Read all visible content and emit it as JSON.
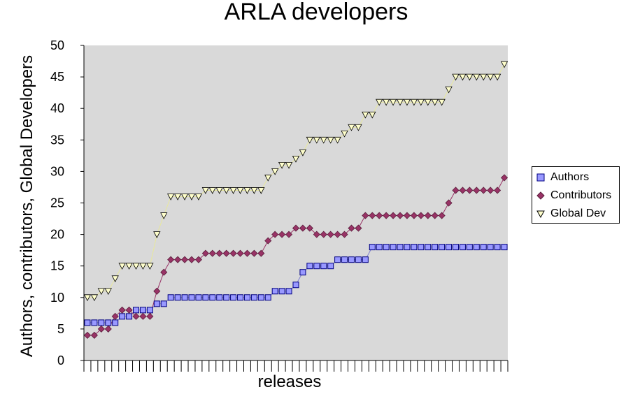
{
  "chart_data": {
    "type": "line",
    "title": "ARLA developers",
    "xlabel": "releases",
    "ylabel": "Authors, contributors, Global Developers",
    "ylim": [
      0,
      50
    ],
    "ytick_values": [
      0,
      5,
      10,
      15,
      20,
      25,
      30,
      35,
      40,
      45,
      50
    ],
    "ytick_labels": [
      "0",
      "5",
      "10",
      "15",
      "20",
      "25",
      "30",
      "35",
      "40",
      "45",
      "50"
    ],
    "release_count": 61,
    "series": [
      {
        "name": "Authors",
        "marker": "square",
        "fill": "#9999ff",
        "stroke": "#000080",
        "values": [
          6,
          6,
          6,
          6,
          6,
          7,
          7,
          8,
          8,
          8,
          9,
          9,
          10,
          10,
          10,
          10,
          10,
          10,
          10,
          10,
          10,
          10,
          10,
          10,
          10,
          10,
          10,
          11,
          11,
          11,
          12,
          14,
          15,
          15,
          15,
          15,
          16,
          16,
          16,
          16,
          16,
          18,
          18,
          18,
          18,
          18,
          18,
          18,
          18,
          18,
          18,
          18,
          18,
          18,
          18,
          18,
          18,
          18,
          18,
          18,
          18
        ]
      },
      {
        "name": "Contributors",
        "marker": "diamond",
        "fill": "#993366",
        "stroke": "#5a1e3c",
        "values": [
          4,
          4,
          5,
          5,
          7,
          8,
          8,
          7,
          7,
          7,
          11,
          14,
          16,
          16,
          16,
          16,
          16,
          17,
          17,
          17,
          17,
          17,
          17,
          17,
          17,
          17,
          19,
          20,
          20,
          20,
          21,
          21,
          21,
          20,
          20,
          20,
          20,
          20,
          21,
          21,
          23,
          23,
          23,
          23,
          23,
          23,
          23,
          23,
          23,
          23,
          23,
          23,
          25,
          27,
          27,
          27,
          27,
          27,
          27,
          27,
          29
        ]
      },
      {
        "name": "Global Dev",
        "marker": "triangle-down",
        "fill": "#ffffcc",
        "stroke": "#000000",
        "values": [
          10,
          10,
          11,
          11,
          13,
          15,
          15,
          15,
          15,
          15,
          20,
          23,
          26,
          26,
          26,
          26,
          26,
          27,
          27,
          27,
          27,
          27,
          27,
          27,
          27,
          27,
          29,
          30,
          31,
          31,
          32,
          33,
          35,
          35,
          35,
          35,
          35,
          36,
          37,
          37,
          39,
          39,
          41,
          41,
          41,
          41,
          41,
          41,
          41,
          41,
          41,
          41,
          43,
          45,
          45,
          45,
          45,
          45,
          45,
          45,
          47
        ]
      }
    ],
    "plot_background": "#d9d9d9"
  }
}
